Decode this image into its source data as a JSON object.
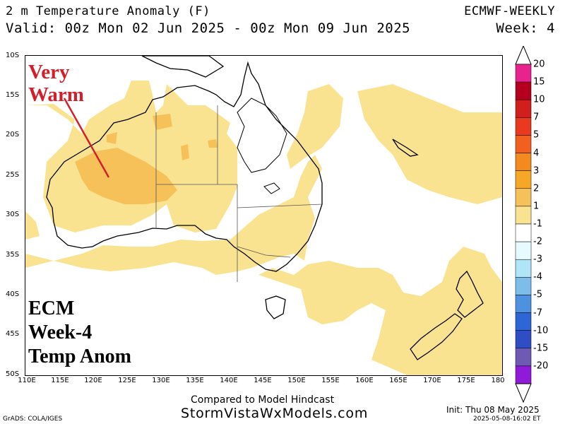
{
  "header": {
    "title": "2 m Temperature Anomaly (F)",
    "valid": "Valid: 00z Mon 02 Jun 2025 - 00z Mon 09 Jun 2025",
    "model": "ECMWF-WEEKLY",
    "week": "Week: 4"
  },
  "map": {
    "lat_labels": [
      "10S",
      "15S",
      "20S",
      "25S",
      "30S",
      "35S",
      "40S",
      "45S",
      "50S"
    ],
    "lon_labels": [
      "110E",
      "115E",
      "120E",
      "125E",
      "130E",
      "135E",
      "140E",
      "145E",
      "150E",
      "155E",
      "160E",
      "165E",
      "170E",
      "175E",
      "180"
    ],
    "extent": {
      "lon_min": 110,
      "lon_max": 180,
      "lat_min": -50,
      "lat_max": -10
    },
    "anomaly_colors": {
      "1_to_2": "#f9e390",
      "2_to_3": "#f7c15a"
    }
  },
  "annotations": {
    "warm_line1": "Very",
    "warm_line2": "Warm",
    "warm_color": "#d31f2a",
    "label_line1": "ECM",
    "label_line2": "Week-4",
    "label_line3": "Temp Anom"
  },
  "colorbar": {
    "labels": [
      "20",
      "15",
      "10",
      "7",
      "5",
      "4",
      "3",
      "2",
      "1",
      "-1",
      "-2",
      "-3",
      "-4",
      "-5",
      "-7",
      "-10",
      "-15",
      "-20"
    ],
    "colors": [
      "#e8238e",
      "#b4001e",
      "#d11f1e",
      "#e9391e",
      "#f1601e",
      "#f28a1e",
      "#f7a726",
      "#f7c15a",
      "#f9e390",
      "#ffffff",
      "#e5fbff",
      "#b0e4f7",
      "#7cbde9",
      "#4c92de",
      "#2d66d6",
      "#2f4ec3",
      "#6e5ab4",
      "#8f1ad8"
    ]
  },
  "footer": {
    "note": "Compared to Model Hindcast",
    "site": "StormVistaWxModels.com",
    "grads": "GrADS: COLA/IGES",
    "init": "Init: Thu 08 May 2025",
    "timestamp": "2025-05-08-16:02 ET"
  }
}
